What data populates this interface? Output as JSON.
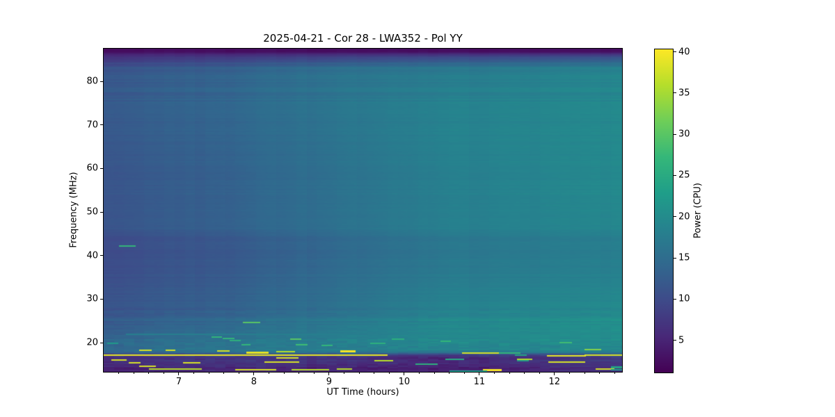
{
  "chart_data": {
    "type": "heatmap",
    "title": "2025-04-21 - Cor 28 - LWA352 - Pol YY",
    "xlabel": "UT Time (hours)",
    "ylabel": "Frequency (MHz)",
    "colorbar_label": "Power (CPU)",
    "x_range": [
      6.0,
      12.9
    ],
    "y_range": [
      13.3,
      87.5
    ],
    "x_ticks": [
      7,
      8,
      9,
      10,
      11,
      12
    ],
    "x_minor_step": 0.2,
    "y_ticks": [
      20,
      30,
      40,
      50,
      60,
      70,
      80
    ],
    "colorbar": {
      "vmin": 1.1,
      "vmax": 40.3,
      "ticks": [
        5,
        10,
        15,
        20,
        25,
        30,
        35,
        40
      ]
    },
    "colormap": {
      "name": "viridis",
      "stops": [
        "#440154",
        "#482878",
        "#3e4a89",
        "#31688e",
        "#26828e",
        "#1f9e89",
        "#35b779",
        "#6ece58",
        "#b5de2b",
        "#fde725"
      ]
    },
    "legend": "none",
    "grid": false,
    "field": {
      "times": [
        6.0,
        7.5,
        9.0,
        10.5,
        12.9
      ],
      "freqs": [
        87.5,
        86.8,
        85.5,
        83,
        76,
        66,
        56,
        46,
        43.5,
        42,
        36,
        28,
        24,
        21,
        19.8,
        18.6,
        17.7,
        17.1,
        16.5,
        15.9,
        15.1,
        14.5,
        13.9,
        13.3
      ],
      "power": [
        [
          2.3,
          2.3,
          2.3,
          2.3,
          2.3
        ],
        [
          2.6,
          2.6,
          2.6,
          2.6,
          2.6
        ],
        [
          7.0,
          8.0,
          9.0,
          10.0,
          11.0
        ],
        [
          11.5,
          13.0,
          15.5,
          17.0,
          18.5
        ],
        [
          12.5,
          14.0,
          16.5,
          18.5,
          19.5
        ],
        [
          12.0,
          13.5,
          16.0,
          18.5,
          19.5
        ],
        [
          11.5,
          13.0,
          15.5,
          18.0,
          19.5
        ],
        [
          11.5,
          13.0,
          15.5,
          18.0,
          19.0
        ],
        [
          10.0,
          11.5,
          14.0,
          16.5,
          17.5
        ],
        [
          10.0,
          11.5,
          14.0,
          16.5,
          17.5
        ],
        [
          10.3,
          11.8,
          14.5,
          17.0,
          18.0
        ],
        [
          11.5,
          13.0,
          15.5,
          18.5,
          19.5
        ],
        [
          12.5,
          14.5,
          17.0,
          19.5,
          20.5
        ],
        [
          14.0,
          16.0,
          18.0,
          20.0,
          20.5
        ],
        [
          15.0,
          16.5,
          18.5,
          20.0,
          20.0
        ],
        [
          14.5,
          16.5,
          18.0,
          19.0,
          19.5
        ],
        [
          12.5,
          14.0,
          15.0,
          15.5,
          16.5
        ],
        [
          7.0,
          8.0,
          8.0,
          7.0,
          9.0
        ],
        [
          6.5,
          7.5,
          7.0,
          5.5,
          8.0
        ],
        [
          6.0,
          7.0,
          6.5,
          5.0,
          7.5
        ],
        [
          5.0,
          6.0,
          5.5,
          4.5,
          6.5
        ],
        [
          5.5,
          6.5,
          5.5,
          4.5,
          7.0
        ],
        [
          4.0,
          5.0,
          4.5,
          4.0,
          5.5
        ],
        [
          4.5,
          5.0,
          4.5,
          4.5,
          5.5
        ]
      ]
    },
    "row_noise_bands": [
      {
        "fmin": 75.0,
        "fmax": 86.5,
        "amp": 0.9
      },
      {
        "fmin": 44.0,
        "fmax": 75.0,
        "amp": 0.4
      },
      {
        "fmin": 28.0,
        "fmax": 44.0,
        "amp": 0.5
      },
      {
        "fmin": 21.0,
        "fmax": 28.0,
        "amp": 0.7
      },
      {
        "fmin": 17.4,
        "fmax": 21.0,
        "amp": 1.1
      },
      {
        "fmin": 13.3,
        "fmax": 17.4,
        "amp": 1.0
      }
    ],
    "cell_noise_bands": [
      {
        "fmin": 13.3,
        "fmax": 21.0,
        "amp": 0.9
      },
      {
        "fmin": 21.0,
        "fmax": 28.0,
        "amp": 0.4
      },
      {
        "fmin": 28.0,
        "fmax": 87.5,
        "amp": 0.12
      }
    ],
    "column_noise": {
      "block_hours": 0.135,
      "amp": 0.25
    },
    "rfi_streaks": [
      [
        6.0,
        9.78,
        17.15,
        39,
        2
      ],
      [
        12.4,
        12.9,
        17.2,
        38,
        2
      ],
      [
        11.9,
        12.42,
        16.95,
        39,
        2
      ],
      [
        10.77,
        11.26,
        17.55,
        38,
        2
      ],
      [
        11.26,
        11.55,
        17.55,
        27,
        2
      ],
      [
        6.1,
        6.3,
        16.0,
        38,
        2
      ],
      [
        6.33,
        6.49,
        15.35,
        38,
        2
      ],
      [
        7.06,
        7.29,
        15.3,
        38,
        2
      ],
      [
        8.14,
        8.6,
        15.55,
        38,
        2
      ],
      [
        9.6,
        9.85,
        15.9,
        36,
        2
      ],
      [
        11.92,
        12.41,
        15.5,
        38,
        2
      ],
      [
        11.5,
        11.7,
        16.2,
        36,
        2
      ],
      [
        8.3,
        8.6,
        16.55,
        38,
        2
      ],
      [
        6.47,
        6.69,
        14.6,
        38,
        2
      ],
      [
        6.6,
        7.3,
        13.9,
        36,
        2
      ],
      [
        7.75,
        8.3,
        13.8,
        38,
        2
      ],
      [
        8.5,
        9.0,
        13.8,
        36,
        2
      ],
      [
        9.1,
        9.3,
        13.9,
        36,
        2
      ],
      [
        11.05,
        11.3,
        13.7,
        40,
        3
      ],
      [
        12.55,
        12.8,
        13.9,
        38,
        2
      ],
      [
        6.05,
        6.2,
        19.8,
        22,
        2
      ],
      [
        6.47,
        6.64,
        18.3,
        38,
        2
      ],
      [
        6.82,
        6.95,
        18.25,
        38,
        2
      ],
      [
        7.51,
        7.68,
        18.1,
        38,
        2
      ],
      [
        7.9,
        8.2,
        17.75,
        39,
        3
      ],
      [
        8.3,
        8.55,
        17.9,
        36,
        2
      ],
      [
        9.15,
        9.35,
        18.0,
        40,
        3
      ],
      [
        7.44,
        7.58,
        21.3,
        27,
        2
      ],
      [
        7.58,
        7.74,
        20.9,
        27,
        2
      ],
      [
        7.68,
        7.83,
        20.5,
        26,
        2
      ],
      [
        8.48,
        8.63,
        20.8,
        30,
        2
      ],
      [
        7.83,
        7.95,
        19.6,
        27,
        2
      ],
      [
        8.56,
        8.72,
        19.6,
        28,
        2
      ],
      [
        8.9,
        9.05,
        19.3,
        27,
        2
      ],
      [
        9.55,
        9.75,
        19.9,
        26,
        2
      ],
      [
        9.83,
        10.0,
        20.8,
        26,
        2
      ],
      [
        10.48,
        10.62,
        20.3,
        27,
        2
      ],
      [
        12.07,
        12.24,
        20.0,
        28,
        2
      ],
      [
        12.4,
        12.62,
        18.4,
        33,
        2
      ],
      [
        6.2,
        6.42,
        42.2,
        27,
        2
      ],
      [
        7.85,
        8.08,
        24.7,
        30,
        2
      ],
      [
        10.15,
        10.45,
        15.0,
        26,
        2
      ],
      [
        10.55,
        10.8,
        16.1,
        25,
        2
      ],
      [
        10.6,
        11.1,
        13.45,
        22,
        2
      ],
      [
        11.47,
        11.63,
        17.2,
        24,
        2
      ],
      [
        11.5,
        11.66,
        15.9,
        22,
        2
      ],
      [
        12.75,
        12.9,
        14.35,
        24,
        3
      ],
      [
        12.75,
        12.9,
        13.75,
        22,
        2
      ],
      [
        6.3,
        9.4,
        21.9,
        18,
        2
      ]
    ]
  }
}
